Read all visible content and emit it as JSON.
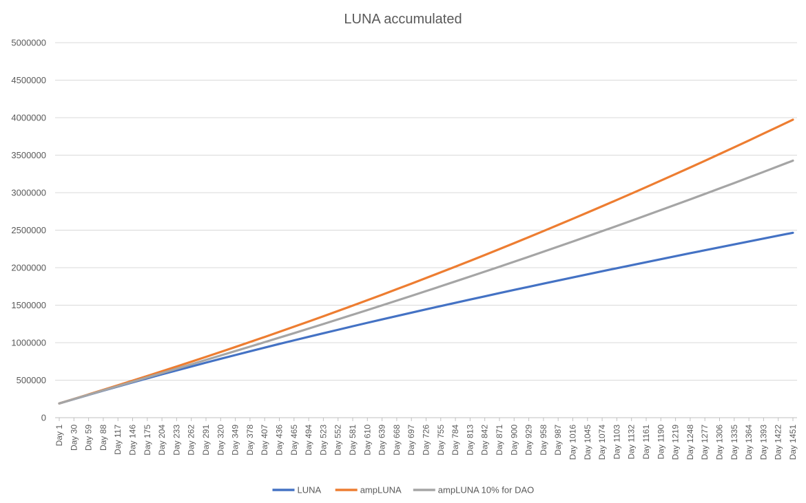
{
  "chart_data": {
    "type": "line",
    "title": "LUNA accumulated",
    "xlabel": "",
    "ylabel": "",
    "ylim": [
      0,
      5000000
    ],
    "yticks": [
      0,
      500000,
      1000000,
      1500000,
      2000000,
      2500000,
      3000000,
      3500000,
      4000000,
      4500000,
      5000000
    ],
    "ytick_labels": [
      "0",
      "500000",
      "1000000",
      "1500000",
      "2000000",
      "2500000",
      "3000000",
      "3500000",
      "4000000",
      "4500000",
      "5000000"
    ],
    "x": [
      1,
      30,
      59,
      88,
      117,
      146,
      175,
      204,
      233,
      262,
      291,
      320,
      349,
      378,
      407,
      436,
      465,
      494,
      523,
      552,
      581,
      610,
      639,
      668,
      697,
      726,
      755,
      784,
      813,
      842,
      871,
      900,
      929,
      958,
      987,
      1016,
      1045,
      1074,
      1103,
      1132,
      1161,
      1190,
      1219,
      1248,
      1277,
      1306,
      1335,
      1364,
      1393,
      1422,
      1451
    ],
    "xtick_labels": [
      "Day 1",
      "Day 30",
      "Day 59",
      "Day 88",
      "Day 117",
      "Day 146",
      "Day 175",
      "Day 204",
      "Day 233",
      "Day 262",
      "Day 291",
      "Day 320",
      "Day 349",
      "Day 378",
      "Day 407",
      "Day 436",
      "Day 465",
      "Day 494",
      "Day 523",
      "Day 552",
      "Day 581",
      "Day 610",
      "Day 639",
      "Day 668",
      "Day 697",
      "Day 726",
      "Day 755",
      "Day 784",
      "Day 813",
      "Day 842",
      "Day 871",
      "Day 900",
      "Day 929",
      "Day 958",
      "Day 987",
      "Day 1016",
      "Day 1045",
      "Day 1074",
      "Day 1103",
      "Day 1132",
      "Day 1161",
      "Day 1190",
      "Day 1219",
      "Day 1248",
      "Day 1277",
      "Day 1306",
      "Day 1335",
      "Day 1364",
      "Day 1393",
      "Day 1422",
      "Day 1451"
    ],
    "series": [
      {
        "name": "LUNA",
        "color": "#4472C4",
        "values": [
          190000,
          247000,
          304000,
          360000,
          415000,
          470000,
          524000,
          578000,
          630000,
          682000,
          734000,
          785000,
          835000,
          885000,
          934000,
          983000,
          1031000,
          1079000,
          1126000,
          1172000,
          1219000,
          1265000,
          1310000,
          1355000,
          1400000,
          1444000,
          1488000,
          1532000,
          1575000,
          1618000,
          1661000,
          1703000,
          1745000,
          1787000,
          1829000,
          1870000,
          1911000,
          1952000,
          1993000,
          2033000,
          2073000,
          2113000,
          2153000,
          2193000,
          2232000,
          2271000,
          2310000,
          2349000,
          2388000,
          2427000,
          2465000
        ]
      },
      {
        "name": "ampLUNA",
        "color": "#ED7D31",
        "values": [
          190000,
          250000,
          310000,
          371000,
          432000,
          494000,
          556000,
          619000,
          682000,
          746000,
          811000,
          876000,
          942000,
          1009000,
          1076000,
          1144000,
          1213000,
          1282000,
          1352000,
          1423000,
          1494000,
          1566000,
          1639000,
          1713000,
          1787000,
          1862000,
          1938000,
          2014000,
          2091000,
          2169000,
          2248000,
          2327000,
          2407000,
          2488000,
          2570000,
          2652000,
          2735000,
          2819000,
          2903000,
          2988000,
          3074000,
          3161000,
          3248000,
          3336000,
          3425000,
          3515000,
          3605000,
          3696000,
          3788000,
          3880000,
          3973000
        ]
      },
      {
        "name": "ampLUNA 10% for DAO",
        "color": "#A5A5A5",
        "values": [
          190000,
          248000,
          306000,
          364000,
          421000,
          479000,
          537000,
          595000,
          653000,
          711000,
          770000,
          829000,
          888000,
          947000,
          1007000,
          1067000,
          1127000,
          1188000,
          1249000,
          1311000,
          1373000,
          1435000,
          1498000,
          1561000,
          1624000,
          1688000,
          1752000,
          1817000,
          1882000,
          1947000,
          2013000,
          2079000,
          2146000,
          2213000,
          2281000,
          2349000,
          2418000,
          2487000,
          2556000,
          2626000,
          2697000,
          2768000,
          2839000,
          2911000,
          2983000,
          3056000,
          3129000,
          3203000,
          3277000,
          3352000,
          3427000
        ]
      }
    ],
    "grid": true,
    "legend_position": "bottom"
  }
}
